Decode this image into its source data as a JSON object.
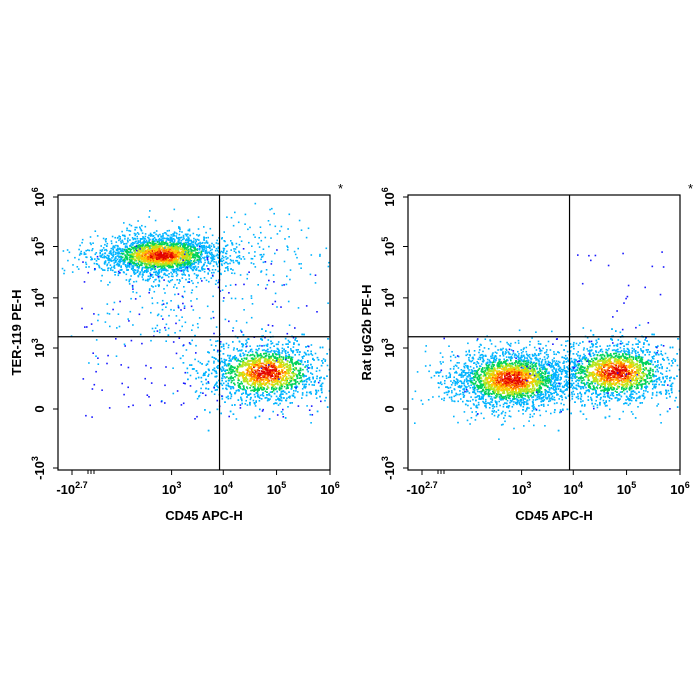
{
  "chart_data": [
    {
      "type": "scatter",
      "subtype": "flow-cytometry-density-dot-plot",
      "marker": "*",
      "xlabel": "CD45 APC-H",
      "ylabel": "TER-119 PE-H",
      "x_scale": "biexponential",
      "y_scale": "biexponential",
      "x_ticks": [
        {
          "base": "-10",
          "exp": "2.7",
          "value": -500
        },
        {
          "base": "10",
          "exp": "3",
          "value": 1000
        },
        {
          "base": "10",
          "exp": "4",
          "value": 10000
        },
        {
          "base": "10",
          "exp": "5",
          "value": 100000
        },
        {
          "base": "10",
          "exp": "6",
          "value": 1000000
        }
      ],
      "y_ticks": [
        {
          "base": "-10",
          "exp": "3",
          "value": -1000
        },
        {
          "base": "0",
          "exp": "",
          "value": 0
        },
        {
          "base": "10",
          "exp": "3",
          "value": 1000
        },
        {
          "base": "10",
          "exp": "4",
          "value": 10000
        },
        {
          "base": "10",
          "exp": "5",
          "value": 100000
        },
        {
          "base": "10",
          "exp": "6",
          "value": 1000000
        }
      ],
      "gates": {
        "x": 8500,
        "y": 1700
      },
      "populations": [
        {
          "name": "CD45- TER-119+",
          "x_center": 600,
          "y_center": 70000,
          "spread": "wide",
          "density": "high"
        },
        {
          "name": "CD45+ TER-119-",
          "x_center": 60000,
          "y_center": 300,
          "spread": "wide",
          "density": "high"
        },
        {
          "name": "CD45+ TER-119 mid (sparse)",
          "x_center": 40000,
          "y_center": 70000,
          "density": "low"
        },
        {
          "name": "CD45- TER-119 mid (sparse)",
          "x_center": 700,
          "y_center": 8000,
          "density": "low"
        }
      ]
    },
    {
      "type": "scatter",
      "subtype": "flow-cytometry-density-dot-plot",
      "marker": "*",
      "xlabel": "CD45 APC-H",
      "ylabel": "Rat IgG2b PE-H",
      "x_scale": "biexponential",
      "y_scale": "biexponential",
      "x_ticks": [
        {
          "base": "-10",
          "exp": "2.7",
          "value": -500
        },
        {
          "base": "10",
          "exp": "3",
          "value": 1000
        },
        {
          "base": "10",
          "exp": "4",
          "value": 10000
        },
        {
          "base": "10",
          "exp": "5",
          "value": 100000
        },
        {
          "base": "10",
          "exp": "6",
          "value": 1000000
        }
      ],
      "y_ticks": [
        {
          "base": "-10",
          "exp": "3",
          "value": -1000
        },
        {
          "base": "0",
          "exp": "",
          "value": 0
        },
        {
          "base": "10",
          "exp": "3",
          "value": 1000
        },
        {
          "base": "10",
          "exp": "4",
          "value": 10000
        },
        {
          "base": "10",
          "exp": "5",
          "value": 100000
        },
        {
          "base": "10",
          "exp": "6",
          "value": 1000000
        }
      ],
      "gates": {
        "x": 8500,
        "y": 1700
      },
      "populations": [
        {
          "name": "CD45- isotype-",
          "x_center": 600,
          "y_center": 200,
          "spread": "wide",
          "density": "high"
        },
        {
          "name": "CD45+ isotype-",
          "x_center": 60000,
          "y_center": 300,
          "spread": "wide",
          "density": "high"
        }
      ]
    }
  ]
}
